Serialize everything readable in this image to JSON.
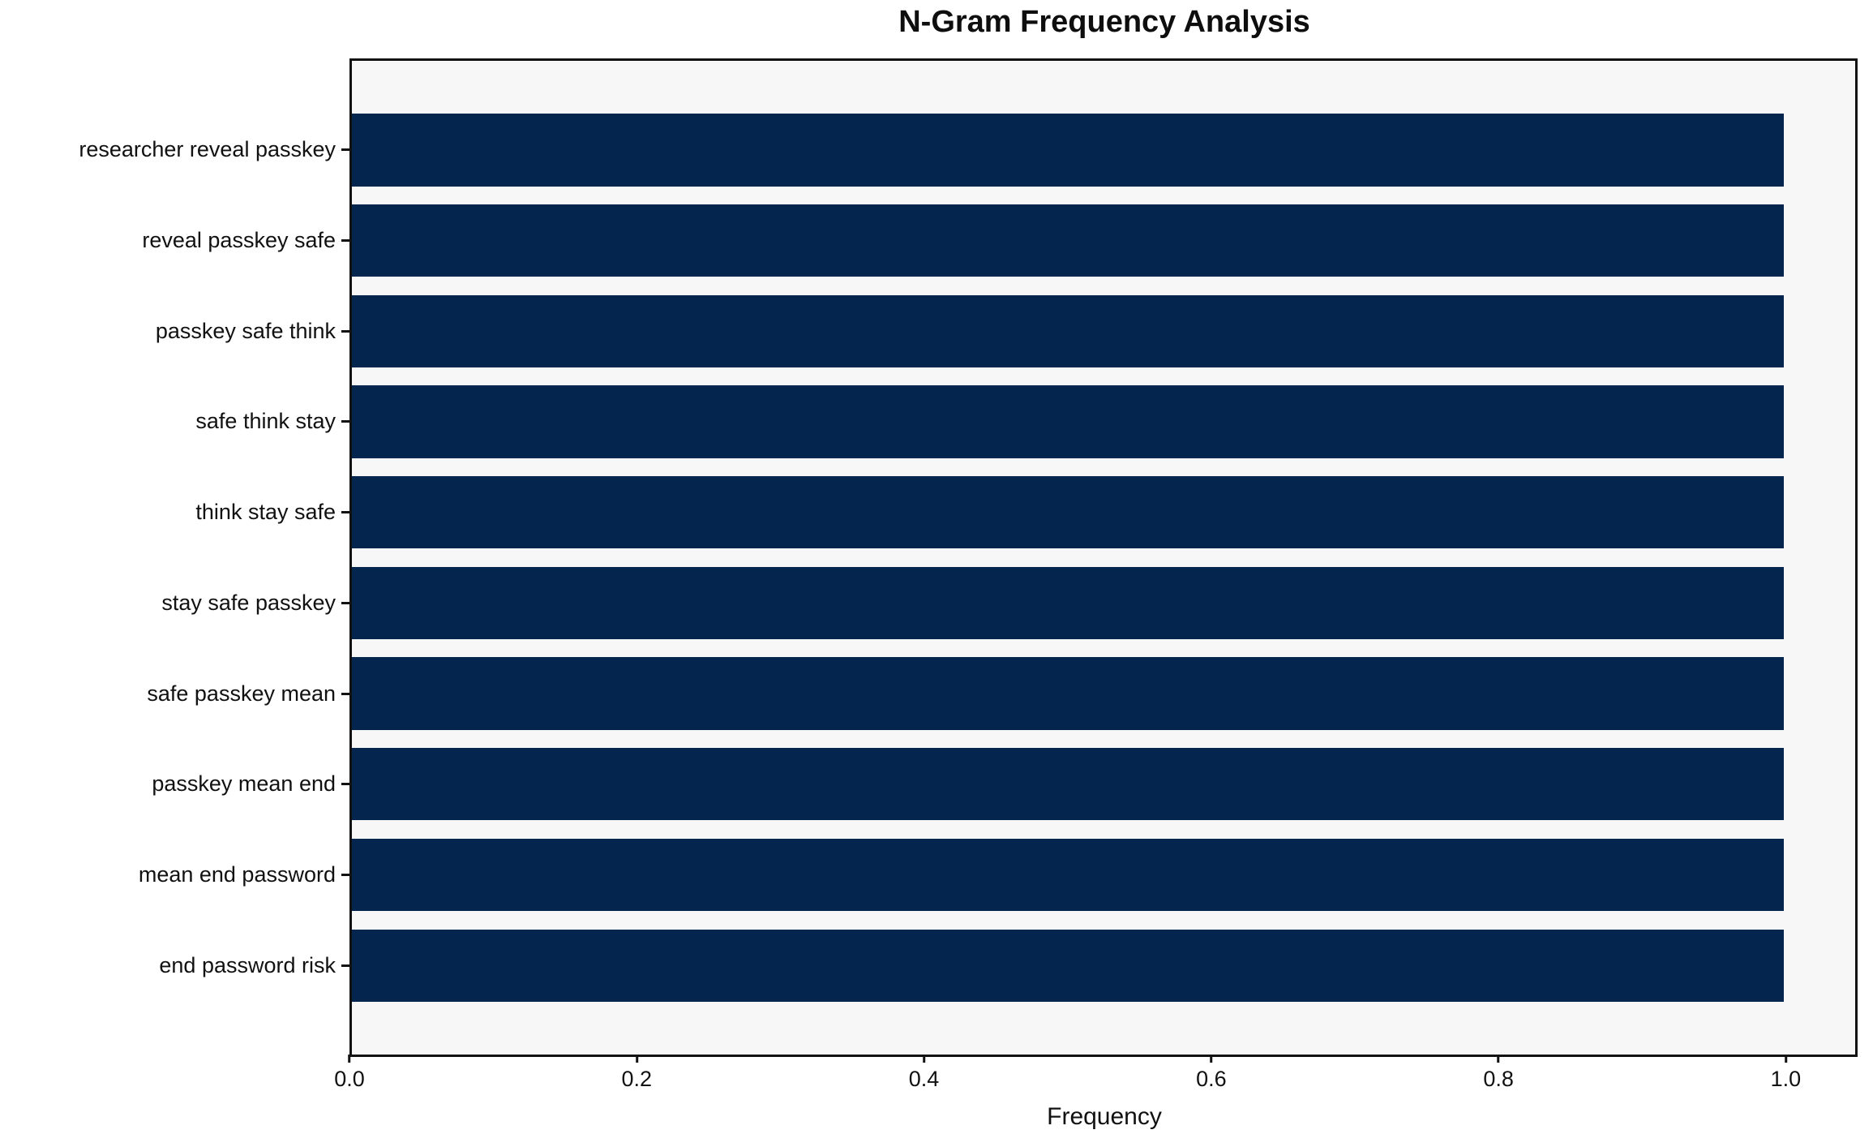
{
  "chart_data": {
    "type": "bar",
    "orientation": "horizontal",
    "title": "N-Gram Frequency Analysis",
    "xlabel": "Frequency",
    "ylabel": "",
    "categories": [
      "researcher reveal passkey",
      "reveal passkey safe",
      "passkey safe think",
      "safe think stay",
      "think stay safe",
      "stay safe passkey",
      "safe passkey mean",
      "passkey mean end",
      "mean end password",
      "end password risk"
    ],
    "values": [
      1.0,
      1.0,
      1.0,
      1.0,
      1.0,
      1.0,
      1.0,
      1.0,
      1.0,
      1.0
    ],
    "xlim": [
      0.0,
      1.05
    ],
    "xticks": [
      {
        "value": 0.0,
        "label": "0.0"
      },
      {
        "value": 0.2,
        "label": "0.2"
      },
      {
        "value": 0.4,
        "label": "0.4"
      },
      {
        "value": 0.6,
        "label": "0.6"
      },
      {
        "value": 0.8,
        "label": "0.8"
      },
      {
        "value": 1.0,
        "label": "1.0"
      }
    ],
    "grid": false,
    "legend": null,
    "colors": {
      "bar": "#03254e",
      "plot_background": "#f7f7f7",
      "figure_background": "#ffffff",
      "spine": "#121212",
      "text": "#111111"
    }
  }
}
